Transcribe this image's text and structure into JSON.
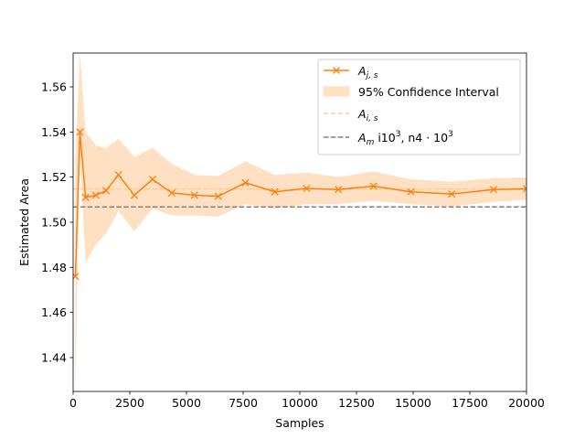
{
  "chart_data": {
    "type": "line",
    "xlabel": "Samples",
    "ylabel": "Estimated Area",
    "xlim": [
      0,
      20000
    ],
    "ylim": [
      1.425,
      1.575
    ],
    "xticks": [
      0,
      2500,
      5000,
      7500,
      10000,
      12500,
      15000,
      17500,
      20000
    ],
    "xtick_labels": [
      "0",
      "2500",
      "5000",
      "7500",
      "10000",
      "12500",
      "15000",
      "17500",
      "20000"
    ],
    "yticks": [
      1.44,
      1.46,
      1.48,
      1.5,
      1.52,
      1.54,
      1.56
    ],
    "ytick_labels": [
      "1.44",
      "1.46",
      "1.48",
      "1.50",
      "1.52",
      "1.54",
      "1.56"
    ],
    "grid": false,
    "legend_position": "top-right",
    "colors": {
      "series": "#ff7f0e",
      "ci_fill": "#ffe0c2",
      "mean_line": "#ffcc99",
      "m_line": "#808080"
    },
    "legend": {
      "series": {
        "sym": "A",
        "sub": "j, s"
      },
      "ci": "95% Confidence Interval",
      "mean": {
        "sym": "A",
        "sub": "i, s"
      },
      "m": {
        "sym": "A",
        "sub": "m",
        "t1": " i10",
        "s1": "3",
        "t2": ", n4 · 10",
        "s2": "3"
      }
    },
    "series": [
      {
        "x": [
          100,
          300,
          550,
          1000,
          1450,
          2000,
          2700,
          3500,
          4350,
          5350,
          6400,
          7600,
          8900,
          10300,
          11700,
          13250,
          14900,
          16700,
          18550,
          20000
        ],
        "values": [
          1.476,
          1.54,
          1.511,
          1.512,
          1.514,
          1.521,
          1.512,
          1.519,
          1.513,
          1.512,
          1.5115,
          1.5175,
          1.5135,
          1.515,
          1.5145,
          1.516,
          1.5135,
          1.5125,
          1.5145,
          1.5148
        ],
        "ci_lower": [
          1.425,
          1.53,
          1.482,
          1.49,
          1.495,
          1.505,
          1.496,
          1.506,
          1.503,
          1.503,
          1.5025,
          1.508,
          1.506,
          1.508,
          1.508,
          1.5095,
          1.508,
          1.507,
          1.509,
          1.51
        ],
        "ci_upper": [
          1.527,
          1.575,
          1.54,
          1.534,
          1.533,
          1.537,
          1.529,
          1.533,
          1.526,
          1.521,
          1.5205,
          1.527,
          1.521,
          1.522,
          1.52,
          1.5225,
          1.519,
          1.518,
          1.5195,
          1.5198
        ]
      }
    ],
    "mean_value": 1.5147,
    "m_value": 1.5068
  }
}
